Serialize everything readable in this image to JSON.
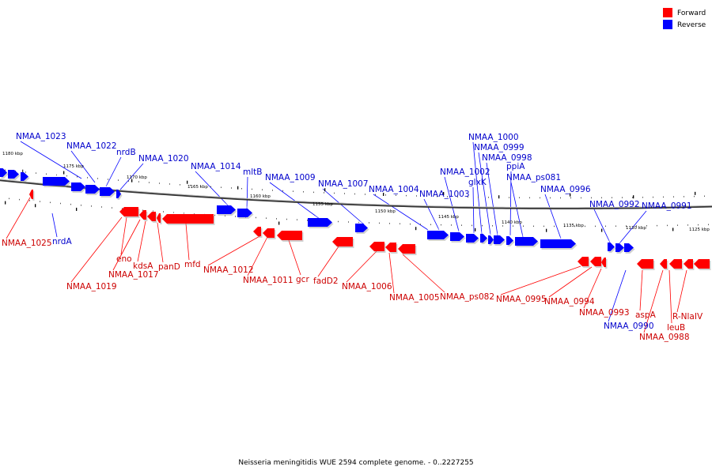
{
  "colors": {
    "forward": "#ff0000",
    "reverse": "#0000ff",
    "forward_label": "#cc0000",
    "reverse_label": "#0000cc"
  },
  "legend": {
    "forward": "Forward",
    "reverse": "Reverse"
  },
  "caption": "Neisseria meningitidis WUE 2594 complete genome. - 0..2227255",
  "kbp_ticks": [
    "1180 kbp",
    "1175 kbp",
    "1170 kbp",
    "1165 kbp",
    "1160 kbp",
    "1155 kbp",
    "1150 kbp",
    "1145 kbp",
    "1140 kbp",
    "1135 kbp",
    "1130 kbp",
    "1125 kbp"
  ],
  "reverse_labels": [
    "NMAA_1023",
    "NMAA_1022",
    "nrdB",
    "NMAA_1020",
    "NMAA_1014",
    "mltB",
    "NMAA_1009",
    "NMAA_1007",
    "NMAA_1004",
    "NMAA_1003",
    "NMAA_1002",
    "glxK",
    "NMAA_1000",
    "NMAA_0999",
    "NMAA_0998",
    "ppiA",
    "NMAA_ps081",
    "NMAA_0996",
    "NMAA_0992",
    "NMAA_0991",
    "nrdA",
    "NMAA_0990"
  ],
  "forward_labels": [
    "NMAA_1025",
    "NMAA_1019",
    "eno",
    "NMAA_1017",
    "kdsA",
    "panD",
    "mfd",
    "NMAA_1012",
    "NMAA_1011",
    "gcr",
    "fadD2",
    "NMAA_1006",
    "NMAA_1005",
    "NMAA_ps082",
    "NMAA_0995",
    "NMAA_0994",
    "NMAA_0993",
    "aspA",
    "leuB",
    "NMAA_0988",
    "R-NlaIV"
  ]
}
